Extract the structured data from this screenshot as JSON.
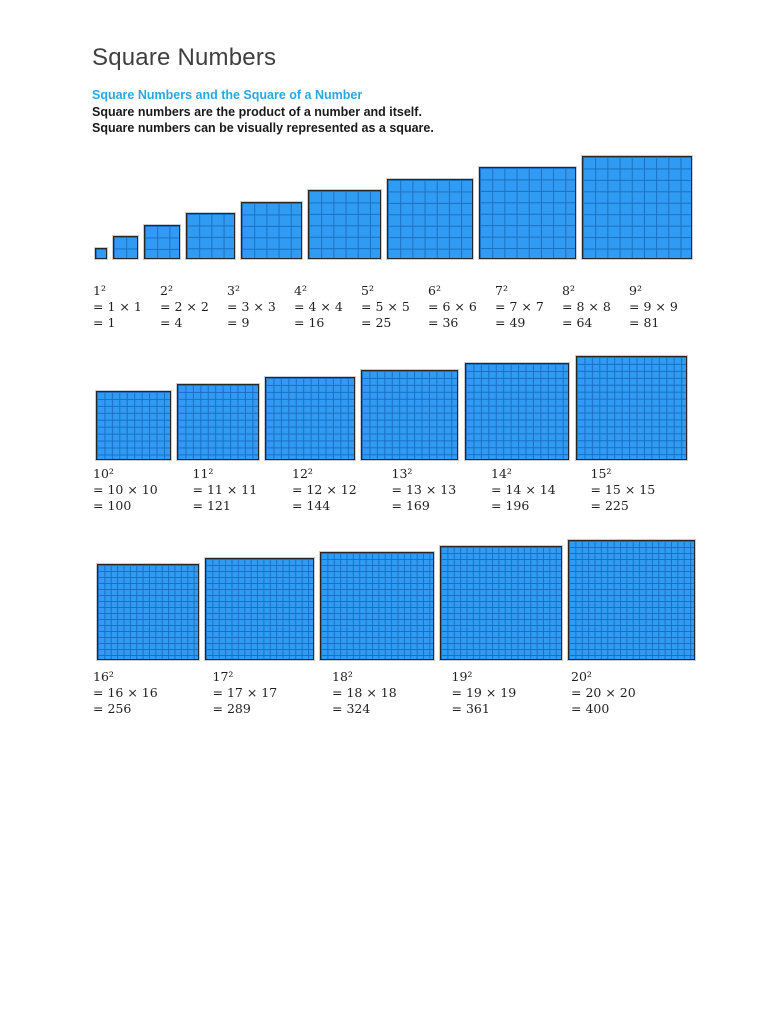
{
  "header": {
    "title": "Square Numbers",
    "subtitle": "Square Numbers and the Square of a Number",
    "body_lines": [
      "Square numbers are the product of a number and itself.",
      "Square numbers can be visually represented as a square."
    ]
  },
  "colors": {
    "accent_blue": "#29a7e4",
    "square_fill": "#2f9bf2",
    "square_grid_line": "#1d6fc2",
    "square_border": "#23272b",
    "title_color": "#3f3f3f",
    "text_color": "#1a1a1a"
  },
  "rows": [
    {
      "squares": [
        {
          "n": 1,
          "power": "1²",
          "equation": "= 1 × 1",
          "result": "= 1"
        },
        {
          "n": 2,
          "power": "2²",
          "equation": "= 2 × 2",
          "result": "= 4"
        },
        {
          "n": 3,
          "power": "3²",
          "equation": "= 3 × 3",
          "result": "= 9"
        },
        {
          "n": 4,
          "power": "4²",
          "equation": "= 4 × 4",
          "result": "= 16"
        },
        {
          "n": 5,
          "power": "5²",
          "equation": "= 5 × 5",
          "result": "= 25"
        },
        {
          "n": 6,
          "power": "6²",
          "equation": "= 6 × 6",
          "result": "= 36"
        },
        {
          "n": 7,
          "power": "7²",
          "equation": "= 7 × 7",
          "result": "= 49"
        },
        {
          "n": 8,
          "power": "8²",
          "equation": "= 8 × 8",
          "result": "= 64"
        },
        {
          "n": 9,
          "power": "9²",
          "equation": "= 9 × 9",
          "result": "= 81"
        }
      ]
    },
    {
      "squares": [
        {
          "n": 10,
          "power": "10²",
          "equation": "= 10 × 10",
          "result": "= 100"
        },
        {
          "n": 11,
          "power": "11²",
          "equation": "= 11 × 11",
          "result": "= 121"
        },
        {
          "n": 12,
          "power": "12²",
          "equation": "= 12 × 12",
          "result": "= 144"
        },
        {
          "n": 13,
          "power": "13²",
          "equation": "= 13 × 13",
          "result": "= 169"
        },
        {
          "n": 14,
          "power": "14²",
          "equation": "= 14 × 14",
          "result": "= 196"
        },
        {
          "n": 15,
          "power": "15²",
          "equation": "= 15 × 15",
          "result": "= 225"
        }
      ]
    },
    {
      "squares": [
        {
          "n": 16,
          "power": "16²",
          "equation": "= 16 × 16",
          "result": "= 256"
        },
        {
          "n": 17,
          "power": "17²",
          "equation": "= 17 × 17",
          "result": "= 289"
        },
        {
          "n": 18,
          "power": "18²",
          "equation": "= 18 × 18",
          "result": "= 324"
        },
        {
          "n": 19,
          "power": "19²",
          "equation": "= 19 × 19",
          "result": "= 361"
        },
        {
          "n": 20,
          "power": "20²",
          "equation": "= 20 × 20",
          "result": "= 400"
        }
      ]
    }
  ]
}
